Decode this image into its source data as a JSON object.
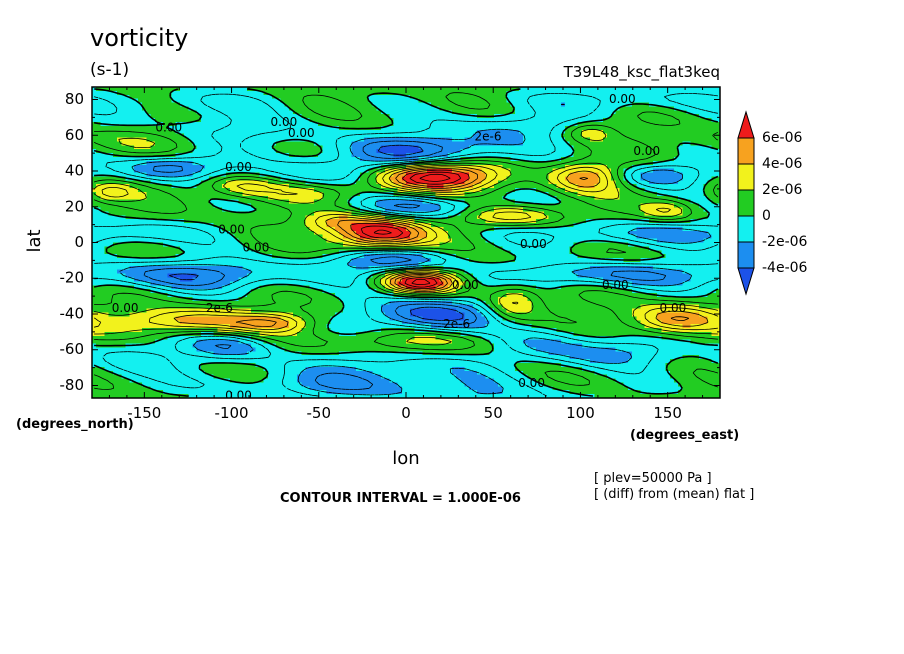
{
  "chart_data": {
    "type": "heatmap",
    "title": "vorticity",
    "units": "(s-1)",
    "experiment": "T39L48_ksc_flat3keq",
    "xlabel": "lon",
    "ylabel": "lat",
    "x_units": "(degrees_east)",
    "y_units": "(degrees_north)",
    "xlim": [
      -180,
      180
    ],
    "ylim": [
      -87,
      87
    ],
    "x_ticks": [
      -150,
      -100,
      -50,
      0,
      50,
      100,
      150
    ],
    "x_tick_labels": [
      "-150",
      "-100",
      "-50",
      "0",
      "50",
      "100",
      "150"
    ],
    "y_ticks": [
      -80,
      -60,
      -40,
      -20,
      0,
      20,
      40,
      60,
      80
    ],
    "y_tick_labels": [
      "-80",
      "-60",
      "-40",
      "-20",
      "0",
      "20",
      "40",
      "60",
      "80"
    ],
    "contour_interval": "CONTOUR INTERVAL = 1.000E-06",
    "notes": [
      "[ plev=50000 Pa ]",
      "[ (diff) from (mean) flat ]"
    ],
    "levels": [
      -6e-06,
      -4e-06,
      -2e-06,
      0,
      2e-06,
      4e-06,
      6e-06
    ],
    "colorbar": {
      "labels": [
        "6e-06",
        "4e-06",
        "2e-06",
        "0",
        "-2e-06",
        "-4e-06"
      ],
      "bins": [
        {
          "color": "#ee1c1c",
          "range": [
            6e-06,
            1e-05
          ]
        },
        {
          "color": "#f7a21f",
          "range": [
            4e-06,
            6e-06
          ]
        },
        {
          "color": "#f2f21c",
          "range": [
            2e-06,
            4e-06
          ]
        },
        {
          "color": "#22cc22",
          "range": [
            0,
            2e-06
          ]
        },
        {
          "color": "#13f0f0",
          "range": [
            -2e-06,
            0
          ]
        },
        {
          "color": "#1c8ef0",
          "range": [
            -4e-06,
            -2e-06
          ]
        },
        {
          "color": "#1c52e8",
          "range": [
            -1e-05,
            -4e-06
          ]
        }
      ]
    },
    "features": [
      {
        "lon": 15,
        "lat": 37,
        "value": 8.5e-06,
        "sx": 24,
        "sy": 5.5
      },
      {
        "lon": -15,
        "lat": 5,
        "value": 8e-06,
        "sx": 18,
        "sy": 6
      },
      {
        "lon": 8,
        "lat": -22,
        "value": 7.5e-06,
        "sx": 15,
        "sy": 4.5
      },
      {
        "lon": 12,
        "lat": 52,
        "value": -4.5e-06,
        "sx": 35,
        "sy": 6
      },
      {
        "lon": 10,
        "lat": 20,
        "value": -3.5e-06,
        "sx": 30,
        "sy": 5
      },
      {
        "lon": -8,
        "lat": -10,
        "value": -4e-06,
        "sx": 25,
        "sy": 5
      },
      {
        "lon": 15,
        "lat": -40,
        "value": -5.5e-06,
        "sx": 25,
        "sy": 7
      },
      {
        "lon": -125,
        "lat": -44,
        "value": 4.5e-06,
        "sx": 26,
        "sy": 5
      },
      {
        "lon": -75,
        "lat": -45,
        "value": 3.5e-06,
        "sx": 16,
        "sy": 4
      },
      {
        "lon": 153,
        "lat": -43,
        "value": 4.5e-06,
        "sx": 18,
        "sy": 6
      },
      {
        "lon": 103,
        "lat": 37,
        "value": 4.5e-06,
        "sx": 14,
        "sy": 6
      },
      {
        "lon": 60,
        "lat": 15,
        "value": 3.5e-06,
        "sx": 20,
        "sy": 4
      },
      {
        "lon": 62,
        "lat": -33,
        "value": 3.5e-06,
        "sx": 11,
        "sy": 7
      },
      {
        "lon": -40,
        "lat": 12,
        "value": 3e-06,
        "sx": 14,
        "sy": 4
      },
      {
        "lon": -170,
        "lat": 28,
        "value": 2.5e-06,
        "sx": 10,
        "sy": 4
      },
      {
        "lon": -95,
        "lat": 32,
        "value": 2.5e-06,
        "sx": 14,
        "sy": 4
      },
      {
        "lon": 105,
        "lat": 62,
        "value": 2.5e-06,
        "sx": 10,
        "sy": 4
      },
      {
        "lon": 150,
        "lat": 18,
        "value": 2.5e-06,
        "sx": 10,
        "sy": 4
      },
      {
        "lon": -135,
        "lat": 42,
        "value": -4.5e-06,
        "sx": 20,
        "sy": 5
      },
      {
        "lon": 145,
        "lat": 38,
        "value": -3.5e-06,
        "sx": 18,
        "sy": 5
      },
      {
        "lon": -120,
        "lat": -18,
        "value": -4e-06,
        "sx": 50,
        "sy": 6
      },
      {
        "lon": 110,
        "lat": -18,
        "value": -3.5e-06,
        "sx": 40,
        "sy": 5
      },
      {
        "lon": -100,
        "lat": -58,
        "value": -3.5e-06,
        "sx": 20,
        "sy": 6
      },
      {
        "lon": 115,
        "lat": -62,
        "value": -3e-06,
        "sx": 25,
        "sy": 6
      },
      {
        "lon": -160,
        "lat": 5,
        "value": -2.5e-06,
        "sx": 30,
        "sy": 5
      },
      {
        "lon": 120,
        "lat": 5,
        "value": -2.5e-06,
        "sx": 40,
        "sy": 5
      },
      {
        "lon": -40,
        "lat": 40,
        "value": -3e-06,
        "sx": 30,
        "sy": 6
      },
      {
        "lon": -100,
        "lat": 62,
        "value": -2e-06,
        "sx": 40,
        "sy": 6
      },
      {
        "lon": 60,
        "lat": 65,
        "value": -2.5e-06,
        "sx": 30,
        "sy": 6
      },
      {
        "lon": -10,
        "lat": -70,
        "value": -2.5e-06,
        "sx": 40,
        "sy": 6
      },
      {
        "lon": 80,
        "lat": -55,
        "value": -2.5e-06,
        "sx": 20,
        "sy": 6
      },
      {
        "lon": -160,
        "lat": -65,
        "value": -2e-06,
        "sx": 20,
        "sy": 8
      },
      {
        "lon": -120,
        "lat": 78,
        "value": -1.5e-06,
        "sx": 40,
        "sy": 6
      },
      {
        "lon": 120,
        "lat": 80,
        "value": -2e-06,
        "sx": 40,
        "sy": 5
      },
      {
        "lon": -30,
        "lat": -80,
        "value": -2.5e-06,
        "sx": 60,
        "sy": 5
      },
      {
        "lon": 40,
        "lat": -88,
        "value": -2e-06,
        "sx": 50,
        "sy": 5
      },
      {
        "lon": -150,
        "lat": 58,
        "value": 1.5e-06,
        "sx": 30,
        "sy": 5
      },
      {
        "lon": 0,
        "lat": -55,
        "value": 1.5e-06,
        "sx": 50,
        "sy": 4
      },
      {
        "lon": -60,
        "lat": 28,
        "value": 1.5e-06,
        "sx": 30,
        "sy": 4
      }
    ],
    "contour_labels": [
      {
        "lon": -136,
        "lat": 64,
        "text": "0.00"
      },
      {
        "lon": -70,
        "lat": 67,
        "text": "0.00"
      },
      {
        "lon": -60,
        "lat": 61,
        "text": "0.00"
      },
      {
        "lon": 124,
        "lat": 80,
        "text": "0.00"
      },
      {
        "lon": 47,
        "lat": 59,
        "text": "2e-6"
      },
      {
        "lon": 138,
        "lat": 51,
        "text": "0.00"
      },
      {
        "lon": -96,
        "lat": 42,
        "text": "0.00"
      },
      {
        "lon": -100,
        "lat": 7,
        "text": "0.00"
      },
      {
        "lon": -86,
        "lat": -3,
        "text": "0.00"
      },
      {
        "lon": 73,
        "lat": -1,
        "text": "0.00"
      },
      {
        "lon": 34,
        "lat": -24,
        "text": "0.00"
      },
      {
        "lon": 120,
        "lat": -24,
        "text": "0.00"
      },
      {
        "lon": 153,
        "lat": -37,
        "text": "0.00"
      },
      {
        "lon": -161,
        "lat": -37,
        "text": "0.00"
      },
      {
        "lon": -107,
        "lat": -37,
        "text": "2e-6"
      },
      {
        "lon": 29,
        "lat": -46,
        "text": "2e-6"
      },
      {
        "lon": 72,
        "lat": -79,
        "text": "0.00"
      },
      {
        "lon": -96,
        "lat": -86,
        "text": "0.00"
      }
    ]
  }
}
